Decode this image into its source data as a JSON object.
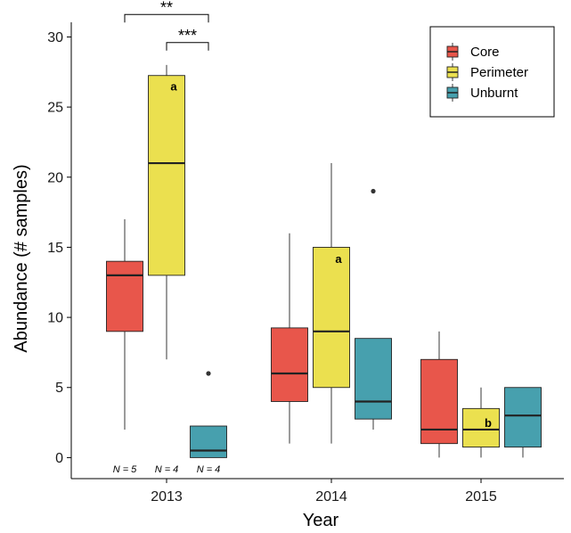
{
  "chart_data": {
    "type": "box",
    "xlabel": "Year",
    "ylabel": "Abundance (# samples)",
    "categories": [
      "2013",
      "2014",
      "2015"
    ],
    "yticks": [
      0,
      5,
      10,
      15,
      20,
      25,
      30
    ],
    "ylim": [
      -1.5,
      32
    ],
    "legend": {
      "position": "top-right",
      "entries": [
        {
          "name": "Core",
          "color": "#e8564b"
        },
        {
          "name": "Perimeter",
          "color": "#ebe04f"
        },
        {
          "name": "Unburnt",
          "color": "#47a0ae"
        }
      ]
    },
    "series": [
      {
        "name": "Core",
        "color": "#e8564b",
        "boxes": [
          {
            "category": "2013",
            "min": 2,
            "q1": 9,
            "median": 13,
            "q3": 14,
            "max": 17,
            "outliers": []
          },
          {
            "category": "2014",
            "min": 1,
            "q1": 4,
            "median": 6,
            "q3": 9.25,
            "max": 16,
            "outliers": []
          },
          {
            "category": "2015",
            "min": 0,
            "q1": 1,
            "median": 2,
            "q3": 7,
            "max": 9,
            "outliers": []
          }
        ]
      },
      {
        "name": "Perimeter",
        "color": "#ebe04f",
        "boxes": [
          {
            "category": "2013",
            "min": 7,
            "q1": 13,
            "median": 21,
            "q3": 27.25,
            "max": 28,
            "outliers": []
          },
          {
            "category": "2014",
            "min": 1,
            "q1": 5,
            "median": 9,
            "q3": 15,
            "max": 21,
            "outliers": []
          },
          {
            "category": "2015",
            "min": 0,
            "q1": 0.75,
            "median": 2,
            "q3": 3.5,
            "max": 5,
            "outliers": []
          }
        ]
      },
      {
        "name": "Unburnt",
        "color": "#47a0ae",
        "boxes": [
          {
            "category": "2013",
            "min": 0,
            "q1": 0,
            "median": 0.5,
            "q3": 2.25,
            "max": 2.25,
            "outliers": [
              6
            ]
          },
          {
            "category": "2014",
            "min": 2,
            "q1": 2.75,
            "median": 4,
            "q3": 8.5,
            "max": 8.5,
            "outliers": [
              19
            ]
          },
          {
            "category": "2015",
            "min": 0,
            "q1": 0.75,
            "median": 3,
            "q3": 5,
            "max": 5,
            "outliers": []
          }
        ]
      }
    ],
    "annotations": {
      "letters": [
        {
          "text": "a",
          "category": "2013",
          "series": "Perimeter",
          "y": 26.5
        },
        {
          "text": "a",
          "category": "2014",
          "series": "Perimeter",
          "y": 14.2
        },
        {
          "text": "b",
          "category": "2015",
          "series": "Perimeter",
          "y": 2.5
        }
      ],
      "sample_sizes": [
        {
          "text": "N = 5",
          "category": "2013",
          "series": "Core"
        },
        {
          "text": "N = 4",
          "category": "2013",
          "series": "Perimeter"
        },
        {
          "text": "N = 4",
          "category": "2013",
          "series": "Unburnt"
        }
      ],
      "significance": [
        {
          "text": "**",
          "category": "2013",
          "from": "Core",
          "to": "Unburnt",
          "y": 31.6
        },
        {
          "text": "***",
          "category": "2013",
          "from": "Perimeter",
          "to": "Unburnt",
          "y": 29.6
        }
      ]
    }
  }
}
